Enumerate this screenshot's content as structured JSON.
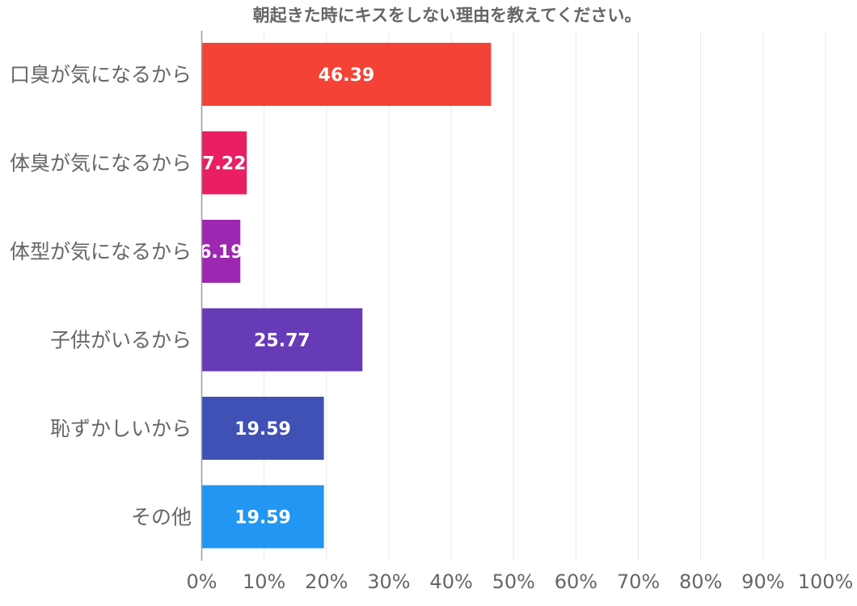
{
  "chart_data": {
    "type": "bar",
    "orientation": "horizontal",
    "title": "朝起きた時にキスをしない理由を教えてください。",
    "xlabel": "",
    "ylabel": "",
    "categories": [
      "口臭が気になるから",
      "体臭が気になるから",
      "体型が気になるから",
      "子供がいるから",
      "恥ずかしいから",
      "その他"
    ],
    "values": [
      46.39,
      7.22,
      6.19,
      25.77,
      19.59,
      19.59
    ],
    "value_labels": [
      "46.39",
      "7.22",
      "6.19",
      "25.77",
      "19.59",
      "19.59"
    ],
    "colors": [
      "#f44336",
      "#e91e63",
      "#9c27b0",
      "#673ab7",
      "#3f51b5",
      "#2196f3"
    ],
    "xlim": [
      0,
      100
    ],
    "xticks": [
      0,
      10,
      20,
      30,
      40,
      50,
      60,
      70,
      80,
      90,
      100
    ],
    "xtick_labels": [
      "0%",
      "10%",
      "20%",
      "30%",
      "40%",
      "50%",
      "60%",
      "70%",
      "80%",
      "90%",
      "100%"
    ],
    "grid": true,
    "legend": "none"
  }
}
